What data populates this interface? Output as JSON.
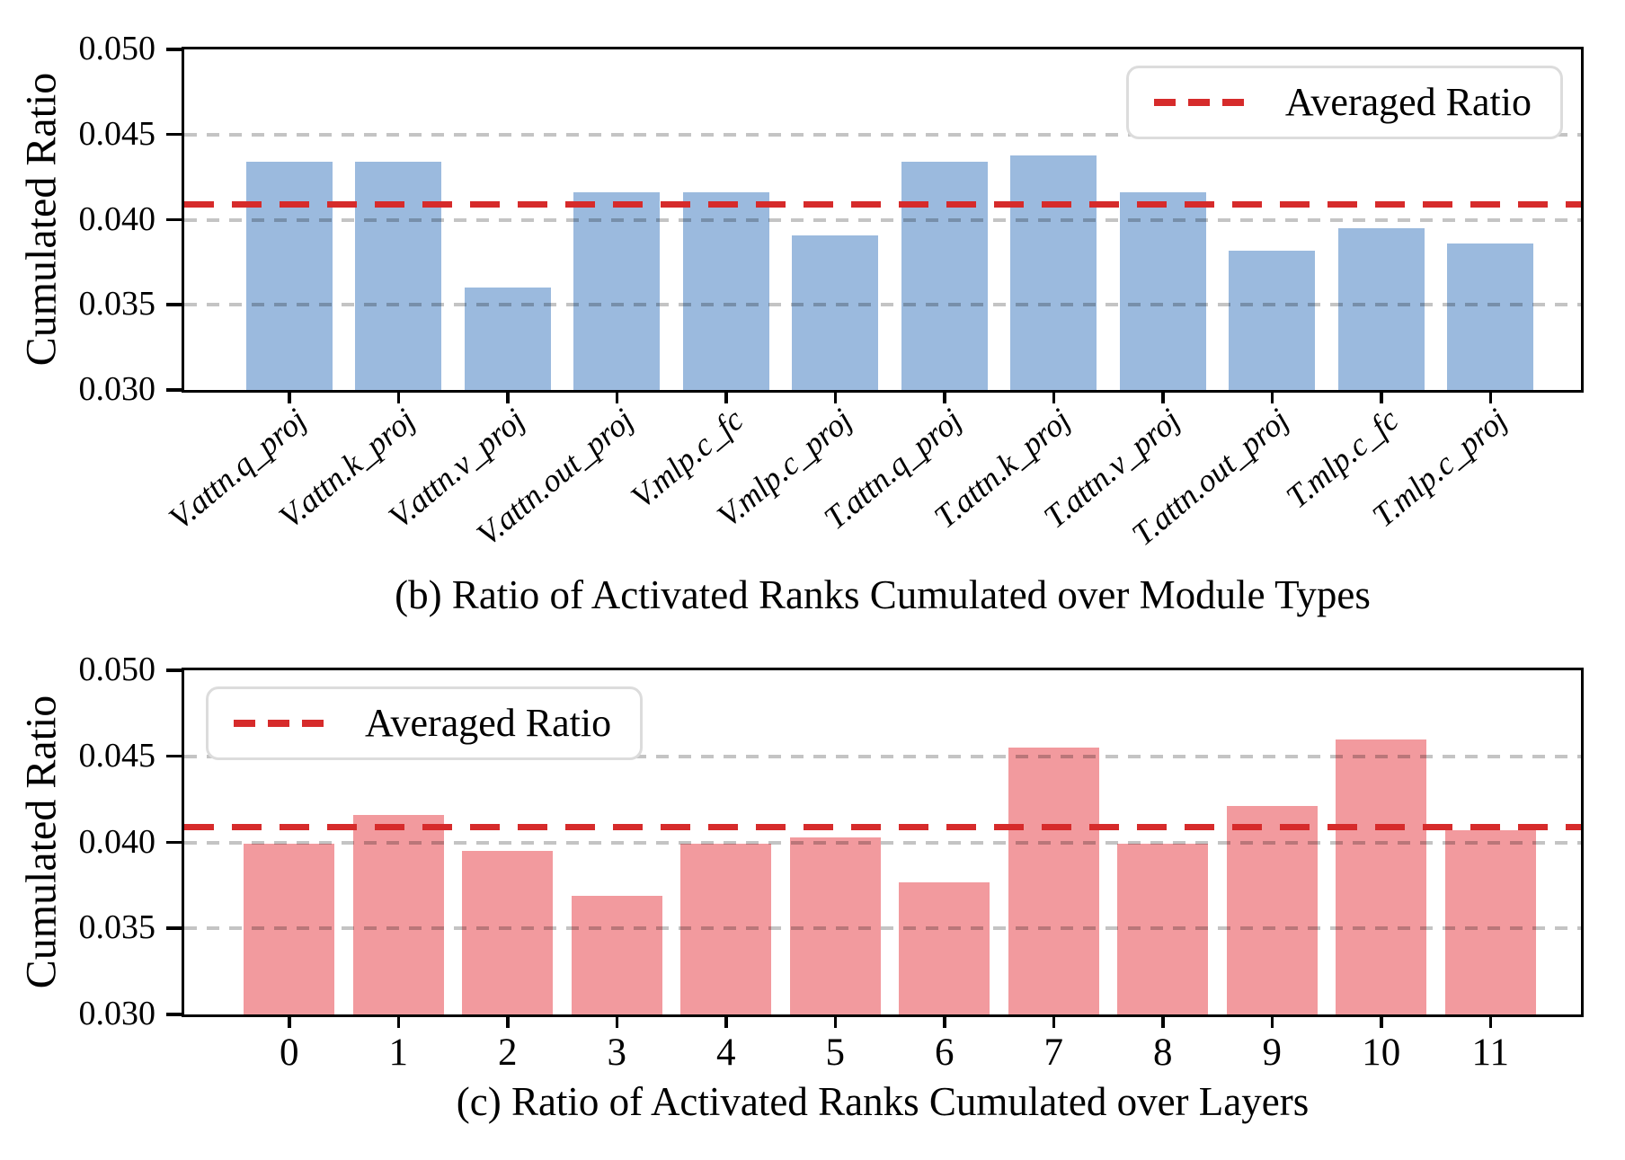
{
  "colors": {
    "bar_blue": "#9bbade",
    "bar_pink": "#f29a9e",
    "avg_line_red": "#d62b2b",
    "gridline_gray": "#c4c4c4",
    "axis_black": "#000000",
    "legend_border": "#dcdcdc"
  },
  "chart_data": [
    {
      "id": "b",
      "type": "bar",
      "caption": "(b) Ratio of Activated Ranks Cumulated over Module Types",
      "ylabel": "Cumulated Ratio",
      "ylim": [
        0.03,
        0.05
      ],
      "yticks": [
        0.03,
        0.035,
        0.04,
        0.045,
        0.05
      ],
      "grid": true,
      "categories": [
        "V.attn.q_proj",
        "V.attn.k_proj",
        "V.attn.v_proj",
        "V.attn.out_proj",
        "V.mlp.c_fc",
        "V.mlp.c_proj",
        "T.attn.q_proj",
        "T.attn.k_proj",
        "T.attn.v_proj",
        "T.attn.out_proj",
        "T.mlp.c_fc",
        "T.mlp.c_proj"
      ],
      "values": [
        0.0434,
        0.0434,
        0.036,
        0.0416,
        0.0416,
        0.0391,
        0.0434,
        0.0438,
        0.0416,
        0.0382,
        0.0395,
        0.0386
      ],
      "average_line": {
        "label": "Averaged Ratio",
        "value": 0.0409
      },
      "legend_position": "top-right",
      "bar_color_key": "bar_blue",
      "x_label_style": "rotated-italic"
    },
    {
      "id": "c",
      "type": "bar",
      "caption": "(c) Ratio of Activated Ranks Cumulated over Layers",
      "ylabel": "Cumulated Ratio",
      "ylim": [
        0.03,
        0.05
      ],
      "yticks": [
        0.03,
        0.035,
        0.04,
        0.045,
        0.05
      ],
      "grid": true,
      "categories": [
        "0",
        "1",
        "2",
        "3",
        "4",
        "5",
        "6",
        "7",
        "8",
        "9",
        "10",
        "11"
      ],
      "values": [
        0.0399,
        0.0416,
        0.0395,
        0.0369,
        0.0399,
        0.0403,
        0.0377,
        0.0455,
        0.0399,
        0.0421,
        0.046,
        0.0407
      ],
      "average_line": {
        "label": "Averaged Ratio",
        "value": 0.0409
      },
      "legend_position": "top-left",
      "bar_color_key": "bar_pink",
      "x_label_style": "horizontal"
    }
  ]
}
